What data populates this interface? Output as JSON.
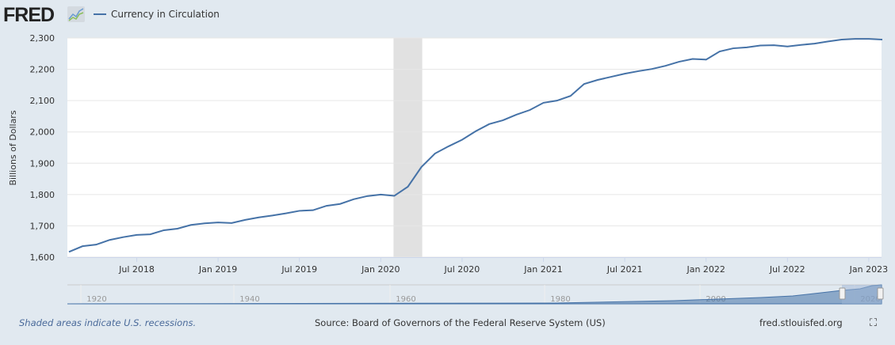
{
  "header": {
    "logo": "FRED",
    "legend_label": "Currency in Circulation"
  },
  "colors": {
    "series": "#4572a7",
    "recession": "#e1e1e1"
  },
  "chart_data": {
    "type": "line",
    "title": "Currency in Circulation",
    "ylabel": "Billions of Dollars",
    "xlabel": "",
    "ylim": [
      1600,
      2300
    ],
    "yticks": [
      "1,600",
      "1,700",
      "1,800",
      "1,900",
      "2,000",
      "2,100",
      "2,200",
      "2,300"
    ],
    "ytick_values": [
      1600,
      1700,
      1800,
      1900,
      2000,
      2100,
      2200,
      2300
    ],
    "xticks": [
      "Jul 2018",
      "Jan 2019",
      "Jul 2019",
      "Jan 2020",
      "Jul 2020",
      "Jan 2021",
      "Jul 2021",
      "Jan 2022",
      "Jul 2022",
      "Jan 2023"
    ],
    "xtick_months": [
      5,
      11,
      17,
      23,
      29,
      35,
      41,
      47,
      53,
      59
    ],
    "start": "2018-02",
    "frequency": "monthly",
    "values": [
      1617,
      1635,
      1640,
      1655,
      1664,
      1671,
      1673,
      1686,
      1691,
      1703,
      1708,
      1711,
      1709,
      1719,
      1727,
      1733,
      1740,
      1748,
      1750,
      1764,
      1770,
      1785,
      1795,
      1800,
      1796,
      1825,
      1888,
      1931,
      1954,
      1975,
      2002,
      2025,
      2037,
      2055,
      2070,
      2093,
      2100,
      2115,
      2153,
      2166,
      2176,
      2186,
      2194,
      2201,
      2211,
      2224,
      2233,
      2231,
      2257,
      2267,
      2270,
      2276,
      2277,
      2273,
      2278,
      2282,
      2289,
      2295,
      2297,
      2297,
      2295
    ],
    "recessions": [
      [
        24,
        26
      ]
    ],
    "grid": true,
    "legend": "top-left"
  },
  "navigator": {
    "labels": [
      "1920",
      "1940",
      "1960",
      "1980",
      "2000",
      "2020"
    ]
  },
  "footer": {
    "note": "Shaded areas indicate U.S. recessions.",
    "source": "Source: Board of Governors of the Federal Reserve System (US)",
    "url": "fred.stlouisfed.org"
  }
}
